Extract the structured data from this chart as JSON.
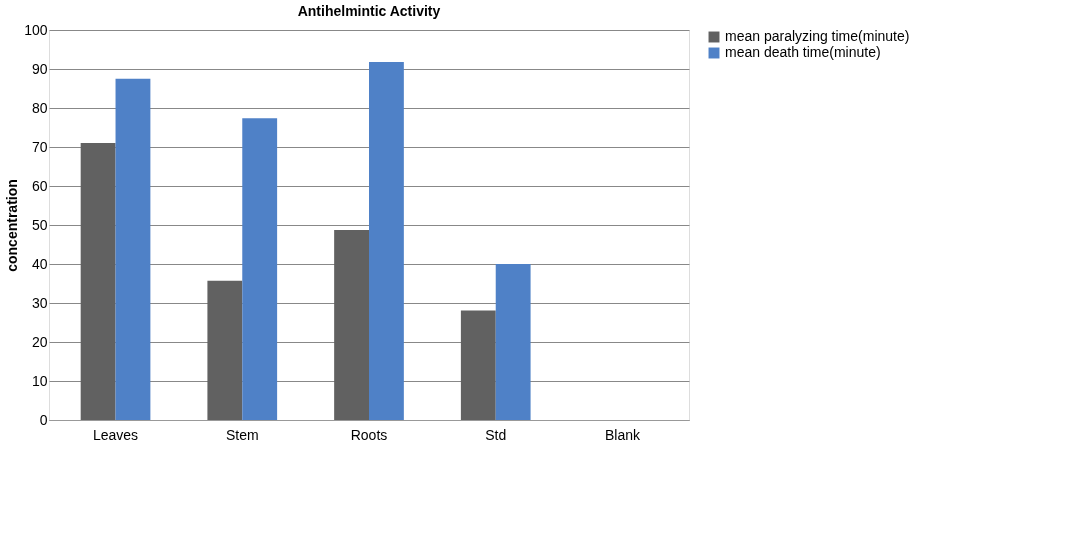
{
  "chart_data": {
    "type": "bar",
    "title": "Antihelmintic Activity",
    "ylabel": "concentration",
    "categories": [
      "Leaves",
      "Stem",
      "Roots",
      "Std",
      "Blank"
    ],
    "series": [
      {
        "name": "mean paralyzing time(minute)",
        "color": "#616161",
        "values": [
          71,
          35.7,
          48.7,
          28.1,
          0
        ]
      },
      {
        "name": "mean death time(minute)",
        "color": "#4f81c7",
        "values": [
          87.5,
          77.4,
          91.8,
          40,
          0
        ]
      }
    ],
    "ylim": [
      0,
      100
    ],
    "yticks": [
      0,
      10,
      20,
      30,
      40,
      50,
      60,
      70,
      80,
      90,
      100
    ],
    "grid": "y",
    "legend": "right"
  }
}
